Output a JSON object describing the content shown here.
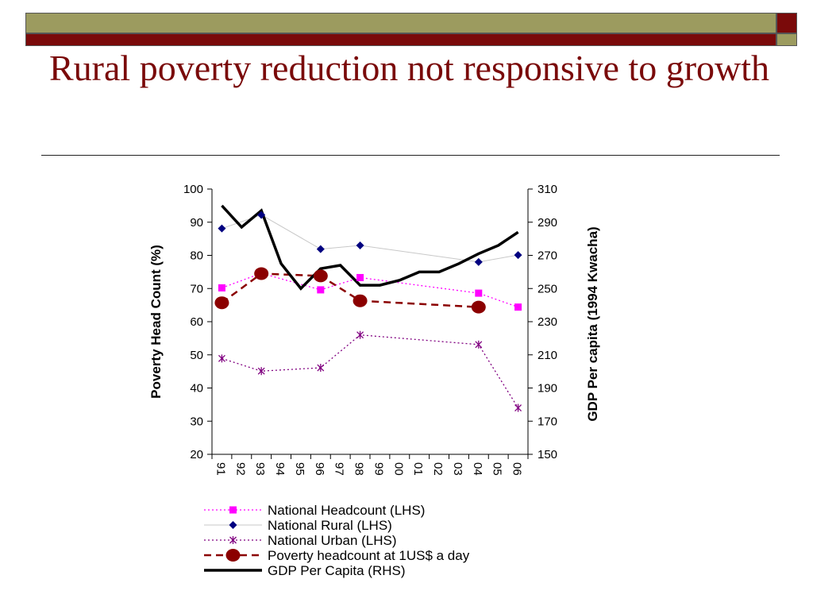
{
  "slide": {
    "title": "Rural poverty reduction not responsive to growth",
    "colors": {
      "band_olive": "#9c9b5f",
      "band_maroon": "#7a0a0a",
      "title": "#7a0a0a"
    }
  },
  "chart_data": {
    "type": "line",
    "categories": [
      "91",
      "92",
      "93",
      "94",
      "95",
      "96",
      "97",
      "98",
      "99",
      "00",
      "01",
      "02",
      "03",
      "04",
      "05",
      "06"
    ],
    "ylabel": "Poverty Head Count (%)",
    "y2label": "GDP Per capita (1994 Kwacha)",
    "ylim": [
      20,
      100
    ],
    "y2lim": [
      150,
      310
    ],
    "yticks": [
      "20",
      "30",
      "40",
      "50",
      "60",
      "70",
      "80",
      "90",
      "100"
    ],
    "y2ticks": [
      "150",
      "170",
      "190",
      "210",
      "230",
      "250",
      "270",
      "290",
      "310"
    ],
    "legend_position": "bottom",
    "series": [
      {
        "name": "National Headcount (LHS)",
        "axis": "left",
        "color": "#ff00ff",
        "line": "dotted",
        "marker": "square",
        "points": [
          [
            0,
            70.2
          ],
          [
            2,
            74.6
          ],
          [
            5,
            69.6
          ],
          [
            7,
            73.3
          ],
          [
            13,
            68.6
          ],
          [
            15,
            64.4
          ]
        ]
      },
      {
        "name": "National Rural (LHS)",
        "axis": "left",
        "color": "#000080",
        "line": "thin-grey",
        "marker": "diamond",
        "points": [
          [
            0,
            88.1
          ],
          [
            2,
            92.2
          ],
          [
            5,
            81.9
          ],
          [
            7,
            83.0
          ],
          [
            13,
            78.0
          ],
          [
            15,
            80.1
          ]
        ]
      },
      {
        "name": "National Urban (LHS)",
        "axis": "left",
        "color": "#800080",
        "line": "dotted",
        "marker": "star",
        "points": [
          [
            0,
            48.9
          ],
          [
            2,
            45.1
          ],
          [
            5,
            46.1
          ],
          [
            7,
            56.0
          ],
          [
            13,
            53.1
          ],
          [
            15,
            34.0
          ]
        ]
      },
      {
        "name": "Poverty headcount at 1US$ a day",
        "axis": "left",
        "color": "#8b0000",
        "line": "dashed",
        "marker": "circle",
        "points": [
          [
            0,
            65.7
          ],
          [
            2,
            74.5
          ],
          [
            5,
            73.8
          ],
          [
            7,
            66.3
          ],
          [
            13,
            64.4
          ]
        ]
      },
      {
        "name": "GDP Per Capita (RHS)",
        "axis": "right",
        "color": "#000000",
        "line": "thick",
        "marker": "none",
        "points": [
          [
            0,
            300
          ],
          [
            1,
            287
          ],
          [
            2,
            297
          ],
          [
            3,
            265
          ],
          [
            4,
            250
          ],
          [
            5,
            262
          ],
          [
            6,
            264
          ],
          [
            7,
            252
          ],
          [
            8,
            252
          ],
          [
            9,
            255
          ],
          [
            10,
            260
          ],
          [
            11,
            260
          ],
          [
            12,
            265
          ],
          [
            13,
            271
          ],
          [
            14,
            276
          ],
          [
            15,
            284
          ]
        ]
      }
    ]
  }
}
